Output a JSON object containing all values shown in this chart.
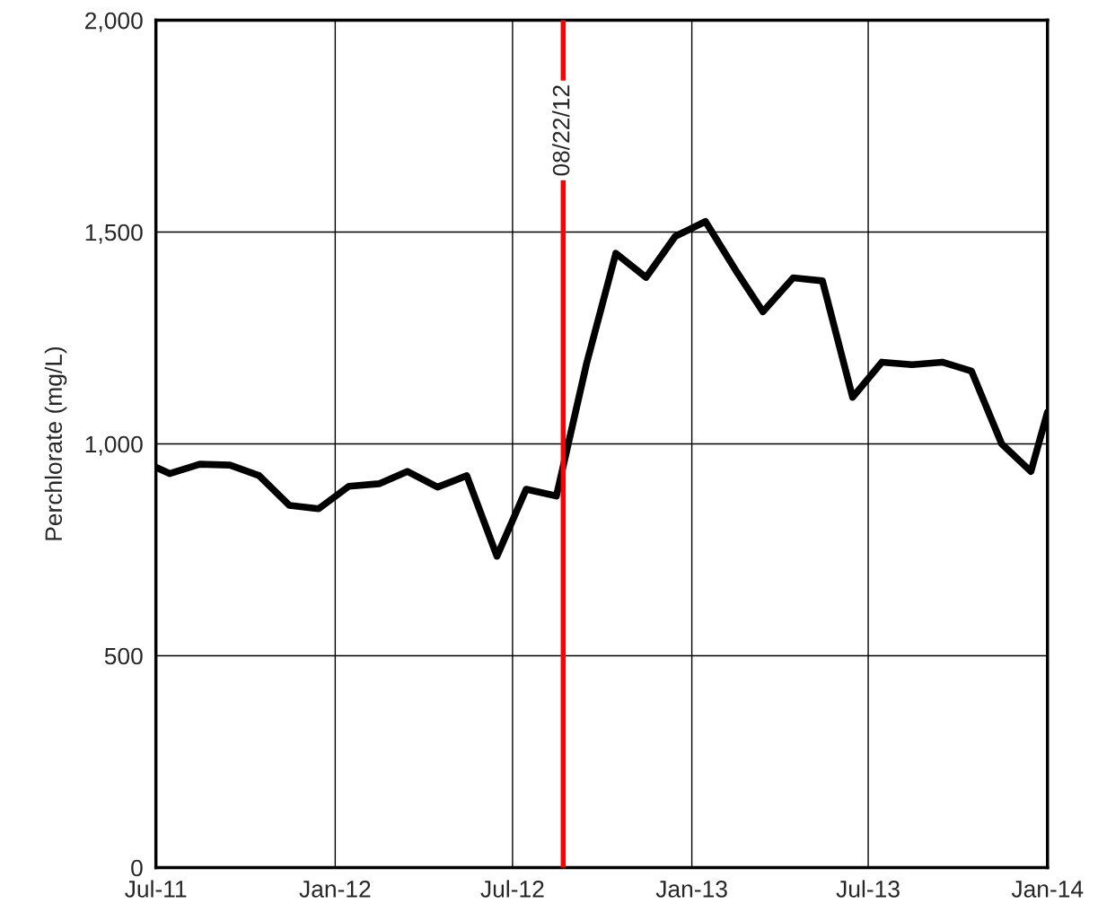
{
  "chart_data": {
    "type": "line",
    "ylabel": "Perchlorate (mg/L)",
    "x": [
      "2011-07-01",
      "2011-07-15",
      "2011-08-15",
      "2011-09-15",
      "2011-10-15",
      "2011-11-15",
      "2011-12-15",
      "2012-01-15",
      "2012-02-15",
      "2012-03-15",
      "2012-04-15",
      "2012-05-15",
      "2012-06-15",
      "2012-07-15",
      "2012-08-15",
      "2012-09-15",
      "2012-10-15",
      "2012-11-15",
      "2012-12-15",
      "2013-01-15",
      "2013-02-15",
      "2013-03-15",
      "2013-04-15",
      "2013-05-15",
      "2013-06-15",
      "2013-07-15",
      "2013-08-15",
      "2013-09-15",
      "2013-10-15",
      "2013-11-15",
      "2013-12-15",
      "2014-01-01"
    ],
    "series": [
      {
        "color": "#000000",
        "values": [
          945,
          930,
          952,
          950,
          925,
          855,
          847,
          900,
          906,
          935,
          898,
          925,
          735,
          893,
          877,
          1190,
          1450,
          1393,
          1490,
          1525,
          1410,
          1312,
          1392,
          1385,
          1110,
          1193,
          1187,
          1193,
          1172,
          1000,
          935,
          1075
        ]
      }
    ],
    "xlim": [
      "2011-07-01",
      "2014-01-01"
    ],
    "xticks": [
      {
        "value": "2011-07-01",
        "label": "Jul-11"
      },
      {
        "value": "2012-01-01",
        "label": "Jan-12"
      },
      {
        "value": "2012-07-01",
        "label": "Jul-12"
      },
      {
        "value": "2013-01-01",
        "label": "Jan-13"
      },
      {
        "value": "2013-07-01",
        "label": "Jul-13"
      },
      {
        "value": "2014-01-01",
        "label": "Jan-14"
      }
    ],
    "ylim": [
      0,
      2000
    ],
    "yticks": [
      0,
      500,
      {
        "value": 1000,
        "label": "1,000"
      },
      {
        "value": 1500,
        "label": "1,500"
      },
      {
        "value": 2000,
        "label": "2,000"
      }
    ],
    "ref_lines": [
      {
        "axis": "x",
        "value": "2012-08-22",
        "label": "08/22/12",
        "color": "#ff0000"
      }
    ],
    "grid": true,
    "marker": "none",
    "line_style": "solid"
  }
}
